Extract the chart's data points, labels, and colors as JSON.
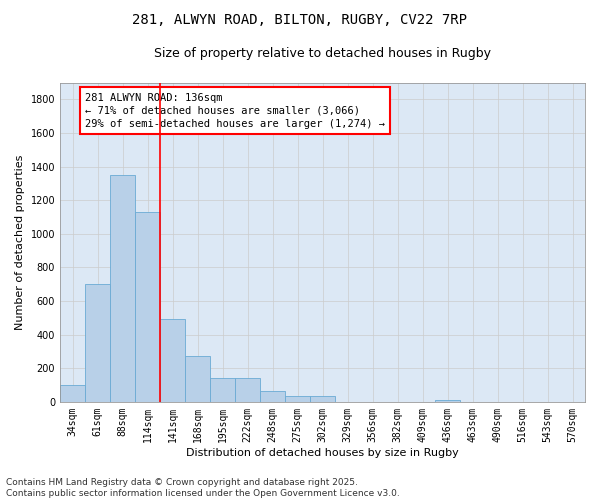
{
  "title_line1": "281, ALWYN ROAD, BILTON, RUGBY, CV22 7RP",
  "title_line2": "Size of property relative to detached houses in Rugby",
  "xlabel": "Distribution of detached houses by size in Rugby",
  "ylabel": "Number of detached properties",
  "categories": [
    "34sqm",
    "61sqm",
    "88sqm",
    "114sqm",
    "141sqm",
    "168sqm",
    "195sqm",
    "222sqm",
    "248sqm",
    "275sqm",
    "302sqm",
    "329sqm",
    "356sqm",
    "382sqm",
    "409sqm",
    "436sqm",
    "463sqm",
    "490sqm",
    "516sqm",
    "543sqm",
    "570sqm"
  ],
  "values": [
    98,
    700,
    1350,
    1130,
    490,
    270,
    140,
    140,
    65,
    35,
    35,
    0,
    0,
    0,
    0,
    12,
    0,
    0,
    0,
    0,
    0
  ],
  "bar_color": "#b8d0e8",
  "bar_edge_color": "#6aaad4",
  "vline_color": "red",
  "vline_pos": 3.5,
  "annotation_text_line1": "281 ALWYN ROAD: 136sqm",
  "annotation_text_line2": "← 71% of detached houses are smaller (3,066)",
  "annotation_text_line3": "29% of semi-detached houses are larger (1,274) →",
  "ylim": [
    0,
    1900
  ],
  "yticks": [
    0,
    200,
    400,
    600,
    800,
    1000,
    1200,
    1400,
    1600,
    1800
  ],
  "grid_color": "#cccccc",
  "bg_color": "#dce8f5",
  "footer_line1": "Contains HM Land Registry data © Crown copyright and database right 2025.",
  "footer_line2": "Contains public sector information licensed under the Open Government Licence v3.0.",
  "title_fontsize": 10,
  "subtitle_fontsize": 9,
  "axis_label_fontsize": 8,
  "tick_fontsize": 7,
  "annotation_fontsize": 7.5,
  "footer_fontsize": 6.5
}
